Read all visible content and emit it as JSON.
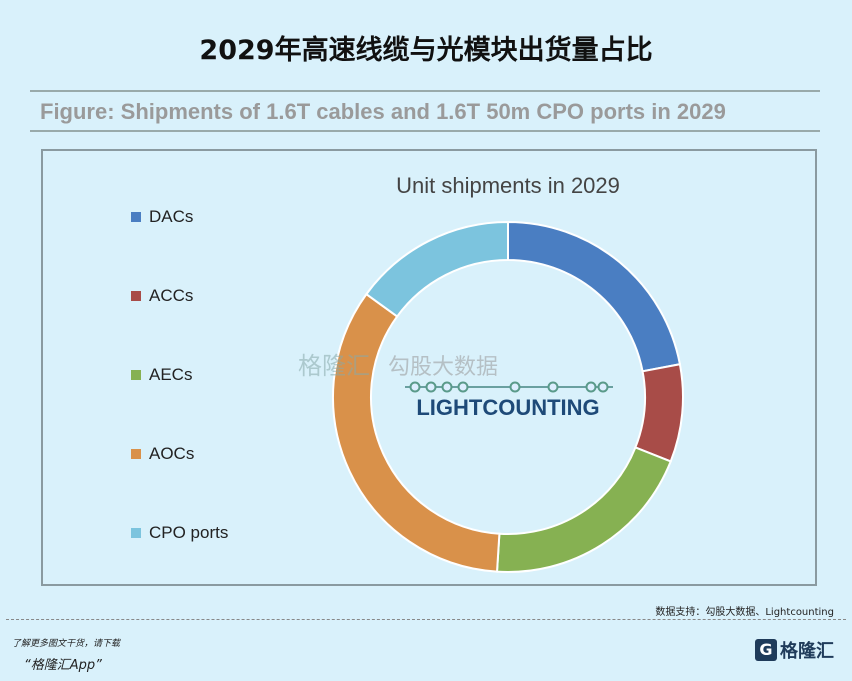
{
  "title": "2029年高速线缆与光模块出货量占比",
  "caption": "Figure: Shipments of 1.6T cables and 1.6T 50m CPO ports in 2029",
  "chart_data": {
    "type": "pie",
    "donut": true,
    "title": "Unit shipments in 2029",
    "categories": [
      "DACs",
      "ACCs",
      "AECs",
      "AOCs",
      "CPO ports"
    ],
    "values": [
      22,
      9,
      20,
      34,
      15
    ],
    "colors": [
      "#4a7ec2",
      "#a84c48",
      "#86b152",
      "#d9914a",
      "#7cc4de"
    ],
    "legend_position": "left",
    "data_labels": false
  },
  "watermark": {
    "brand": "格隆汇",
    "data": "勾股大数据",
    "logo": "LIGHTCOUNTING"
  },
  "footer": {
    "source": "数据支持：勾股大数据、Lightcounting",
    "promo_line1": "了解更多图文干货，请下载",
    "promo_line2": "“格隆汇App”",
    "logo_text": "格隆汇"
  }
}
